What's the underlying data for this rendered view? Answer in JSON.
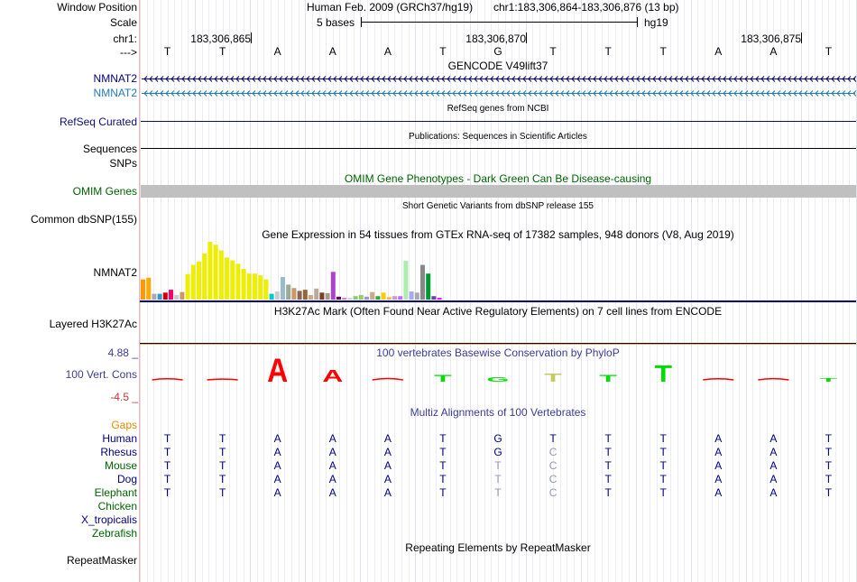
{
  "header": {
    "window_position_label": "Window Position",
    "scale_label": "Scale",
    "chrom_label": "chr1:",
    "strand_label": "--->",
    "assembly_text": "Human Feb. 2009 (GRCh37/hg19)",
    "position_text": "chr1:183,306,864-183,306,876 (13 bp)",
    "scale_text": "5 bases",
    "db_text": "hg19",
    "coords": [
      "183,306,865",
      "183,306,870",
      "183,306,875"
    ]
  },
  "bases": [
    "T",
    "T",
    "A",
    "A",
    "A",
    "T",
    "G",
    "T",
    "T",
    "T",
    "A",
    "A",
    "T"
  ],
  "tracks": {
    "gencode": {
      "title": "GENCODE V49lift37",
      "gene1": "NMNAT2",
      "gene2": "NMNAT2",
      "color1": "#000080",
      "color2": "#1e7ab8"
    },
    "refseq": {
      "label": "RefSeq Curated",
      "title": "RefSeq genes from NCBI",
      "color": "#0c0c78"
    },
    "publications": {
      "label": "Sequences",
      "title": "Publications: Sequences in Scientific Articles"
    },
    "snps": {
      "label": "SNPs"
    },
    "omim": {
      "label": "OMIM Genes",
      "title": "OMIM Gene Phenotypes - Dark Green Can Be Disease-causing",
      "color": "#006400",
      "bar_color": "#c0c0c0"
    },
    "dbsnp": {
      "label": "Common dbSNP(155)",
      "title": "Short Genetic Variants from dbSNP release 155"
    },
    "gtex": {
      "label": "NMNAT2",
      "title": "Gene Expression in 54 tissues from GTEx RNA-seq of 17382 samples, 948 donors (V8, Aug 2019)",
      "values": [
        0.35,
        0.38,
        0.1,
        0.1,
        0.12,
        0.17,
        0.08,
        0.13,
        0.44,
        0.6,
        0.66,
        0.8,
        1.0,
        0.95,
        0.85,
        0.73,
        0.68,
        0.62,
        0.53,
        0.45,
        0.45,
        0.42,
        0.35,
        0.1,
        0.14,
        0.39,
        0.26,
        0.2,
        0.15,
        0.17,
        0.08,
        0.19,
        0.12,
        0.11,
        0.48,
        0.05,
        0.03,
        0.03,
        0.06,
        0.08,
        0.05,
        0.13,
        0.06,
        0.12,
        0.04,
        0.06,
        0.06,
        0.67,
        0.14,
        0.12,
        0.6,
        0.45,
        0.06,
        0.03
      ],
      "colors": [
        "#ff9900",
        "#ffaa00",
        "#aaaaaa",
        "#3399cc",
        "#cc0000",
        "#ff0066",
        "#cccccc",
        "#cc9966",
        "#eeee00",
        "#eeee00",
        "#eeee00",
        "#eeee00",
        "#eeee00",
        "#eeee00",
        "#eeee00",
        "#eeee00",
        "#eeee00",
        "#eeee00",
        "#eeee00",
        "#eeee00",
        "#eeee00",
        "#eeee00",
        "#eeee00",
        "#00cccc",
        "#cccccc",
        "#99bbcc",
        "#99aa99",
        "#cc9966",
        "#886655",
        "#996633",
        "#ccaa88",
        "#bbaa99",
        "#774422",
        "#aa9988",
        "#aa44cc",
        "#660066",
        "#cc88aa",
        "#ccccdd",
        "#88cc66",
        "#99cc66",
        "#9999cc",
        "#ccaa88",
        "#33aa33",
        "#ffcc00",
        "#ffaa55",
        "#cc99cc",
        "#cc66ff",
        "#aaeeaa",
        "#aaaaee",
        "#aaaaaa",
        "#888888",
        "#009933",
        "#6644aa",
        "#ff00ff"
      ]
    },
    "h3k27ac": {
      "label": "Layered H3K27Ac",
      "title": "H3K27Ac Mark (Often Found Near Active Regulatory Elements) on 7 cell lines from ENCODE"
    },
    "phylop": {
      "label": "100 Vert. Cons",
      "title": "100 vertebrates Basewise Conservation by PhyloP",
      "max_label": "4.88 _",
      "min_label": "-4.5 _",
      "values": [
        -0.4,
        -0.3,
        2.0,
        1.0,
        -0.5,
        0.6,
        0.4,
        0.7,
        0.6,
        1.4,
        -0.4,
        -0.45,
        0.3
      ],
      "colors": [
        "#ff0000",
        "#ff0000",
        "#ff0000",
        "#ff0000",
        "#ff0000",
        "#00dd00",
        "#00dd00",
        "#c8c864",
        "#00dd00",
        "#00dd00",
        "#ff0000",
        "#ff0000",
        "#00dd00"
      ]
    },
    "multiz": {
      "title": "Multiz Alignments of 100 Vertebrates",
      "gaps_label": "Gaps",
      "species": [
        {
          "name": "Human",
          "color": "#000080",
          "seq": [
            "T",
            "T",
            "A",
            "A",
            "A",
            "T",
            "G",
            "T",
            "T",
            "T",
            "A",
            "A",
            "T"
          ],
          "dim": [
            0,
            0,
            0,
            0,
            0,
            0,
            0,
            0,
            0,
            0,
            0,
            0,
            0
          ]
        },
        {
          "name": "Rhesus",
          "color": "#000080",
          "seq": [
            "T",
            "T",
            "A",
            "A",
            "A",
            "T",
            "G",
            "C",
            "T",
            "T",
            "A",
            "A",
            "T"
          ],
          "dim": [
            0,
            0,
            0,
            0,
            0,
            0,
            0,
            1,
            0,
            0,
            0,
            0,
            0
          ]
        },
        {
          "name": "Mouse",
          "color": "#006400",
          "seq": [
            "T",
            "T",
            "A",
            "A",
            "A",
            "T",
            "T",
            "C",
            "T",
            "T",
            "A",
            "A",
            "T"
          ],
          "dim": [
            0,
            0,
            0,
            0,
            0,
            0,
            1,
            1,
            0,
            0,
            0,
            0,
            0
          ]
        },
        {
          "name": "Dog",
          "color": "#000080",
          "seq": [
            "T",
            "T",
            "A",
            "A",
            "A",
            "T",
            "T",
            "C",
            "T",
            "T",
            "A",
            "A",
            "T"
          ],
          "dim": [
            0,
            0,
            0,
            0,
            0,
            0,
            1,
            1,
            0,
            0,
            0,
            0,
            0
          ]
        },
        {
          "name": "Elephant",
          "color": "#006400",
          "seq": [
            "T",
            "T",
            "A",
            "A",
            "A",
            "T",
            "T",
            "C",
            "T",
            "T",
            "A",
            "A",
            "T"
          ],
          "dim": [
            0,
            0,
            0,
            0,
            0,
            0,
            1,
            1,
            0,
            0,
            0,
            0,
            0
          ]
        },
        {
          "name": "Chicken",
          "color": "#006400",
          "seq": [],
          "dim": []
        },
        {
          "name": "X_tropicalis",
          "color": "#000080",
          "seq": [],
          "dim": []
        },
        {
          "name": "Zebrafish",
          "color": "#006400",
          "seq": [],
          "dim": []
        }
      ]
    },
    "repeatmasker": {
      "label": "RepeatMasker",
      "title": "Repeating Elements by RepeatMasker"
    }
  }
}
